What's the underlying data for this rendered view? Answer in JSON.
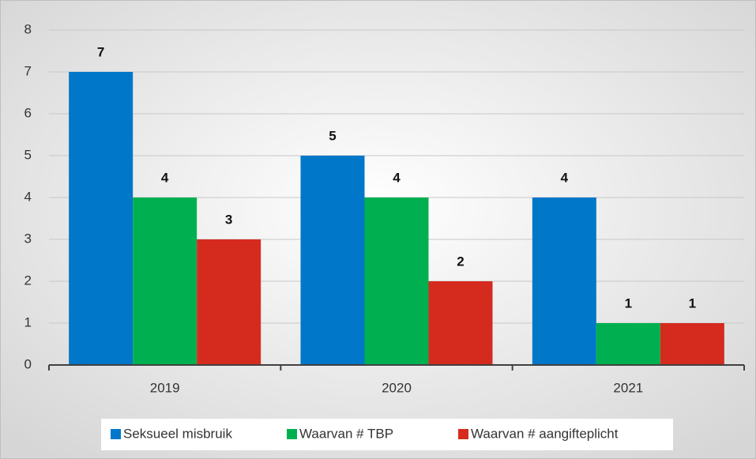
{
  "chart_data": {
    "type": "bar",
    "categories": [
      "2019",
      "2020",
      "2021"
    ],
    "series": [
      {
        "name": "Seksueel misbruik",
        "color": "#0077c8",
        "values": [
          7,
          5,
          4
        ]
      },
      {
        "name": "Waarvan # TBP",
        "color": "#00b050",
        "values": [
          4,
          4,
          1
        ]
      },
      {
        "name": "Waarvan # aangifteplicht",
        "color": "#d52b1e",
        "values": [
          3,
          2,
          1
        ]
      }
    ],
    "ylim": [
      0,
      8
    ],
    "yticks": [
      0,
      1,
      2,
      3,
      4,
      5,
      6,
      7,
      8
    ],
    "grid": true,
    "legend": "bottom"
  }
}
